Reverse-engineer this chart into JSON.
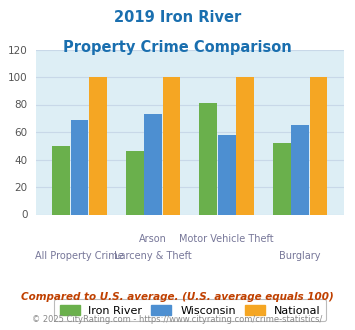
{
  "title_line1": "2019 Iron River",
  "title_line2": "Property Crime Comparison",
  "title_color": "#1a6faf",
  "cat_labels_top": [
    "",
    "Arson",
    "Motor Vehicle Theft",
    ""
  ],
  "cat_labels_bot": [
    "All Property Crime",
    "Larceny & Theft",
    "",
    "Burglary"
  ],
  "iron_river": [
    50,
    46,
    81,
    52
  ],
  "wisconsin": [
    69,
    73,
    58,
    65
  ],
  "national": [
    100,
    100,
    100,
    100
  ],
  "iron_river_color": "#6ab04c",
  "wisconsin_color": "#4d8fd1",
  "national_color": "#f5a623",
  "ylim": [
    0,
    120
  ],
  "yticks": [
    0,
    20,
    40,
    60,
    80,
    100,
    120
  ],
  "grid_color": "#c8d8e8",
  "plot_bg_color": "#ddeef5",
  "legend_labels": [
    "Iron River",
    "Wisconsin",
    "National"
  ],
  "footnote1": "Compared to U.S. average. (U.S. average equals 100)",
  "footnote2": "© 2025 CityRating.com - https://www.cityrating.com/crime-statistics/",
  "footnote1_color": "#c04000",
  "footnote2_color": "#888888",
  "bar_width": 0.24,
  "figsize": [
    3.55,
    3.3
  ],
  "dpi": 100
}
